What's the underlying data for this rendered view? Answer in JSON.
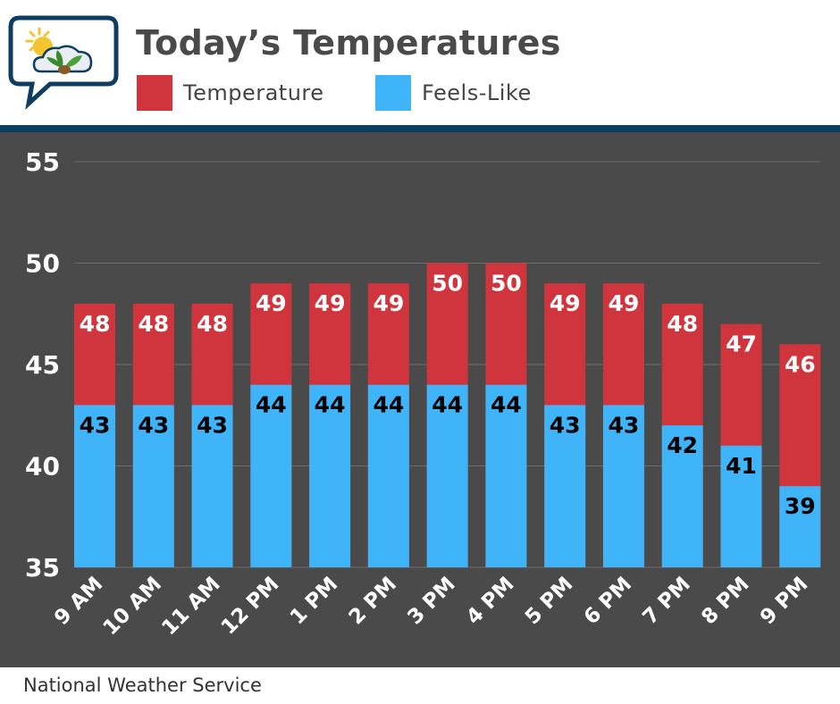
{
  "header": {
    "title": "Today’s Temperatures"
  },
  "colors": {
    "temperature": "#d0343c",
    "feels_like": "#3fb4f8",
    "panel": "#4a4a4a",
    "divider": "#0e3d62"
  },
  "legend": {
    "temperature_label": "Temperature",
    "feels_like_label": "Feels-Like"
  },
  "footer": {
    "source": "National Weather Service"
  },
  "chart_data": {
    "type": "bar",
    "title": "Today’s Temperatures",
    "xlabel": "",
    "ylabel": "",
    "ylim": [
      35,
      55
    ],
    "yticks": [
      35,
      40,
      45,
      50,
      55
    ],
    "grid": true,
    "legend_position": "top-left",
    "categories": [
      "9 AM",
      "10 AM",
      "11 AM",
      "12 PM",
      "1 PM",
      "2 PM",
      "3 PM",
      "4 PM",
      "5 PM",
      "6 PM",
      "7 PM",
      "8 PM",
      "9 PM"
    ],
    "series": [
      {
        "name": "Temperature",
        "values": [
          48,
          48,
          48,
          49,
          49,
          49,
          50,
          50,
          49,
          49,
          48,
          47,
          46
        ]
      },
      {
        "name": "Feels-Like",
        "values": [
          43,
          43,
          43,
          44,
          44,
          44,
          44,
          44,
          43,
          43,
          42,
          41,
          39
        ]
      }
    ]
  }
}
